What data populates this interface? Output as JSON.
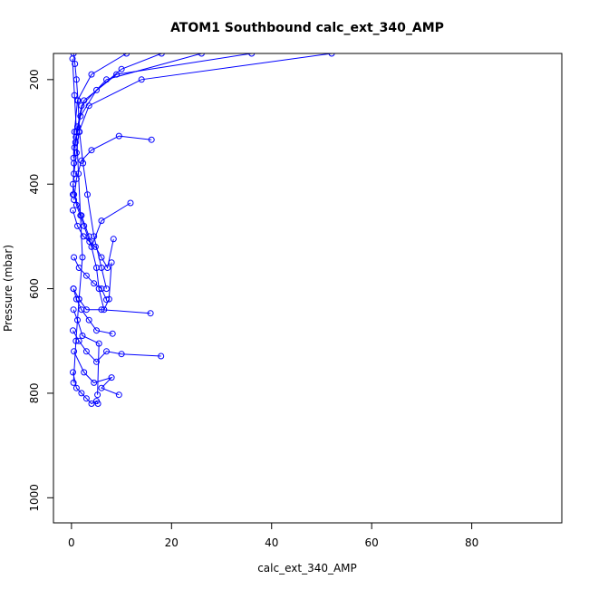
{
  "chart_data": {
    "type": "line",
    "title": "ATOM1 Southbound calc_ext_340_AMP",
    "xlabel": "calc_ext_340_AMP",
    "ylabel": "Pressure (mbar)",
    "xlim": [
      -3.6,
      98
    ],
    "ylim": [
      1048,
      150
    ],
    "y_reversed": true,
    "x_ticks": [
      0,
      20,
      40,
      60,
      80
    ],
    "y_ticks": [
      200,
      400,
      600,
      800,
      1000
    ],
    "grid": false,
    "series_color": "#0000ff",
    "marker": "open-circle",
    "series": [
      {
        "x": [
          0.4,
          0.7,
          1.0,
          1.3,
          1.6,
          2.3,
          3.2,
          4.5,
          6.0,
          7.0
        ],
        "y": [
          150,
          170,
          200,
          240,
          300,
          360,
          420,
          500,
          560,
          600
        ]
      },
      {
        "x": [
          52,
          14,
          3.5,
          1.5,
          1.0,
          0.5
        ],
        "y": [
          150,
          200,
          250,
          300,
          340,
          380
        ]
      },
      {
        "x": [
          36,
          9,
          2.5,
          1.2,
          0.6
        ],
        "y": [
          150,
          190,
          240,
          290,
          330
        ]
      },
      {
        "x": [
          26,
          7,
          2.0,
          0.9,
          0.5,
          0.3
        ],
        "y": [
          150,
          200,
          250,
          310,
          360,
          420
        ]
      },
      {
        "x": [
          18,
          10,
          5.0,
          1.8,
          0.8
        ],
        "y": [
          150,
          180,
          220,
          270,
          320
        ]
      },
      {
        "x": [
          11,
          4.0,
          1.2,
          0.6,
          0.4
        ],
        "y": [
          150,
          190,
          240,
          300,
          350
        ]
      },
      {
        "x": [
          16.0,
          9.5,
          4.0,
          2.0,
          1.0,
          0.5
        ],
        "y": [
          315,
          308,
          335,
          355,
          390,
          430
        ]
      },
      {
        "x": [
          0.3,
          1.0,
          2.5,
          4.0,
          6.0,
          11.8
        ],
        "y": [
          400,
          440,
          480,
          520,
          470,
          436
        ]
      },
      {
        "x": [
          0.5,
          2.0,
          3.5,
          5.0,
          5.5,
          6.5,
          7.5,
          8.0
        ],
        "y": [
          420,
          460,
          500,
          560,
          600,
          640,
          620,
          550
        ]
      },
      {
        "x": [
          0.4,
          1.5,
          3.0,
          6.0,
          15.8
        ],
        "y": [
          600,
          620,
          640,
          640,
          647
        ]
      },
      {
        "x": [
          0.3,
          1.5,
          3.0,
          5.0,
          7.0,
          10.0,
          17.9
        ],
        "y": [
          680,
          700,
          720,
          740,
          720,
          725,
          729
        ]
      },
      {
        "x": [
          0.5,
          2.5,
          4.5,
          8.0,
          6.0,
          9.5
        ],
        "y": [
          720,
          760,
          780,
          770,
          790,
          803
        ]
      },
      {
        "x": [
          0.3,
          1.0,
          2.0,
          3.0,
          4.0,
          5.0,
          5.3
        ],
        "y": [
          760,
          790,
          800,
          810,
          820,
          815,
          820
        ]
      },
      {
        "x": [
          0.4,
          1.2,
          2.2,
          5.5,
          5.2
        ],
        "y": [
          640,
          660,
          690,
          705,
          803
        ]
      },
      {
        "x": [
          0.2,
          0.6,
          1.0,
          1.4,
          1.8,
          2.2,
          1.5,
          0.9,
          0.4
        ],
        "y": [
          160,
          230,
          300,
          380,
          460,
          540,
          620,
          700,
          780
        ]
      },
      {
        "x": [
          0.3,
          1.2,
          2.4,
          3.6,
          4.8,
          6.0,
          7.2,
          8.4
        ],
        "y": [
          450,
          480,
          500,
          510,
          520,
          540,
          560,
          505
        ]
      },
      {
        "x": [
          0.5,
          1.5,
          3.0,
          4.5,
          6.0,
          7.0
        ],
        "y": [
          540,
          560,
          575,
          590,
          600,
          621
        ]
      },
      {
        "x": [
          0.4,
          1.0,
          2.0,
          3.5,
          5.0,
          8.2
        ],
        "y": [
          600,
          620,
          640,
          660,
          680,
          686
        ]
      }
    ]
  }
}
